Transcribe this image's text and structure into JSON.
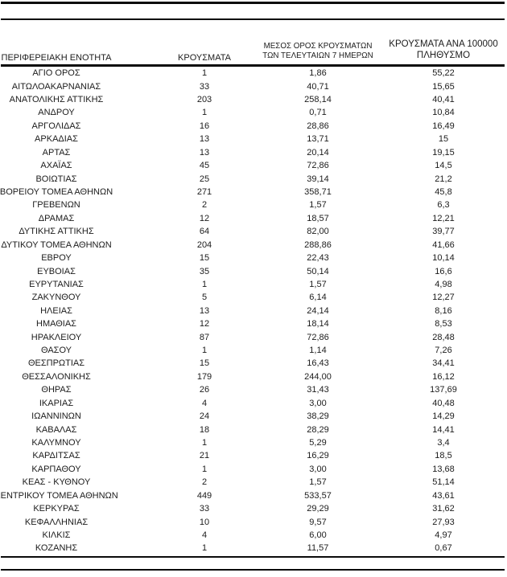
{
  "document": {
    "kind": "regional-covid-cases-table",
    "colors": {
      "text": "#1c1c1c",
      "line": "#0a0a0a",
      "background": "#ffffff"
    },
    "table": {
      "columns": [
        {
          "id": "region",
          "label": "ΠΕΡΙΦΕΡΕΙΑΚΗ ΕΝΟΤΗΤΑ"
        },
        {
          "id": "cases",
          "label": "ΚΡΟΥΣΜΑΤΑ"
        },
        {
          "id": "avg7",
          "label_line1": "ΜΕΣΟΣ ΟΡΟΣ ΚΡΟΥΣΜΑΤΩΝ",
          "label_line2": "ΤΩΝ ΤΕΛΕΥΤΑΙΩΝ 7 ΗΜΕΡΩΝ"
        },
        {
          "id": "per100k",
          "label_line1": "ΚΡΟΥΣΜΑΤΑ ΑΝΑ 100000",
          "label_line2": "ΠΛΗΘΥΣΜΟ"
        }
      ],
      "rows": [
        [
          "ΑΓΙΟ ΟΡΟΣ",
          "1",
          "1,86",
          "55,22"
        ],
        [
          "ΑΙΤΩΛΟΑΚΑΡΝΑΝΙΑΣ",
          "33",
          "40,71",
          "15,65"
        ],
        [
          "ΑΝΑΤΟΛΙΚΗΣ ΑΤΤΙΚΗΣ",
          "203",
          "258,14",
          "40,41"
        ],
        [
          "ΑΝΔΡΟΥ",
          "1",
          "0,71",
          "10,84"
        ],
        [
          "ΑΡΓΟΛΙΔΑΣ",
          "16",
          "28,86",
          "16,49"
        ],
        [
          "ΑΡΚΑΔΙΑΣ",
          "13",
          "13,71",
          "15"
        ],
        [
          "ΑΡΤΑΣ",
          "13",
          "20,14",
          "19,15"
        ],
        [
          "ΑΧΑΪΑΣ",
          "45",
          "72,86",
          "14,5"
        ],
        [
          "ΒΟΙΩΤΙΑΣ",
          "25",
          "39,14",
          "21,2"
        ],
        [
          "ΒΟΡΕΙΟΥ ΤΟΜΕΑ ΑΘΗΝΩΝ",
          "271",
          "358,71",
          "45,8"
        ],
        [
          "ΓΡΕΒΕΝΩΝ",
          "2",
          "1,57",
          "6,3"
        ],
        [
          "ΔΡΑΜΑΣ",
          "12",
          "18,57",
          "12,21"
        ],
        [
          "ΔΥΤΙΚΗΣ ΑΤΤΙΚΗΣ",
          "64",
          "82,00",
          "39,77"
        ],
        [
          "ΔΥΤΙΚΟΥ ΤΟΜΕΑ ΑΘΗΝΩΝ",
          "204",
          "288,86",
          "41,66"
        ],
        [
          "ΕΒΡΟΥ",
          "15",
          "22,43",
          "10,14"
        ],
        [
          "ΕΥΒΟΙΑΣ",
          "35",
          "50,14",
          "16,6"
        ],
        [
          "ΕΥΡΥΤΑΝΙΑΣ",
          "1",
          "1,57",
          "4,98"
        ],
        [
          "ΖΑΚΥΝΘΟΥ",
          "5",
          "6,14",
          "12,27"
        ],
        [
          "ΗΛΕΙΑΣ",
          "13",
          "24,14",
          "8,16"
        ],
        [
          "ΗΜΑΘΙΑΣ",
          "12",
          "18,14",
          "8,53"
        ],
        [
          "ΗΡΑΚΛΕΙΟΥ",
          "87",
          "72,86",
          "28,48"
        ],
        [
          "ΘΑΣΟΥ",
          "1",
          "1,14",
          "7,26"
        ],
        [
          "ΘΕΣΠΡΩΤΙΑΣ",
          "15",
          "16,43",
          "34,41"
        ],
        [
          "ΘΕΣΣΑΛΟΝΙΚΗΣ",
          "179",
          "244,00",
          "16,12"
        ],
        [
          "ΘΗΡΑΣ",
          "26",
          "31,43",
          "137,69"
        ],
        [
          "ΙΚΑΡΙΑΣ",
          "4",
          "3,00",
          "40,48"
        ],
        [
          "ΙΩΑΝΝΙΝΩΝ",
          "24",
          "38,29",
          "14,29"
        ],
        [
          "ΚΑΒΑΛΑΣ",
          "18",
          "28,29",
          "14,41"
        ],
        [
          "ΚΑΛΥΜΝΟΥ",
          "1",
          "5,29",
          "3,4"
        ],
        [
          "ΚΑΡΔΙΤΣΑΣ",
          "21",
          "16,29",
          "18,5"
        ],
        [
          "ΚΑΡΠΑΘΟΥ",
          "1",
          "3,00",
          "13,68"
        ],
        [
          "ΚΕΑΣ - ΚΥΘΝΟΥ",
          "2",
          "1,57",
          "51,14"
        ],
        [
          "ΚΕΝΤΡΙΚΟΥ ΤΟΜΕΑ ΑΘΗΝΩΝ",
          "449",
          "533,57",
          "43,61"
        ],
        [
          "ΚΕΡΚΥΡΑΣ",
          "33",
          "29,29",
          "31,62"
        ],
        [
          "ΚΕΦΑΛΛΗΝΙΑΣ",
          "10",
          "9,57",
          "27,93"
        ],
        [
          "ΚΙΛΚΙΣ",
          "4",
          "6,00",
          "4,97"
        ],
        [
          "ΚΟΖΑΝΗΣ",
          "1",
          "11,57",
          "0,67"
        ]
      ]
    }
  }
}
